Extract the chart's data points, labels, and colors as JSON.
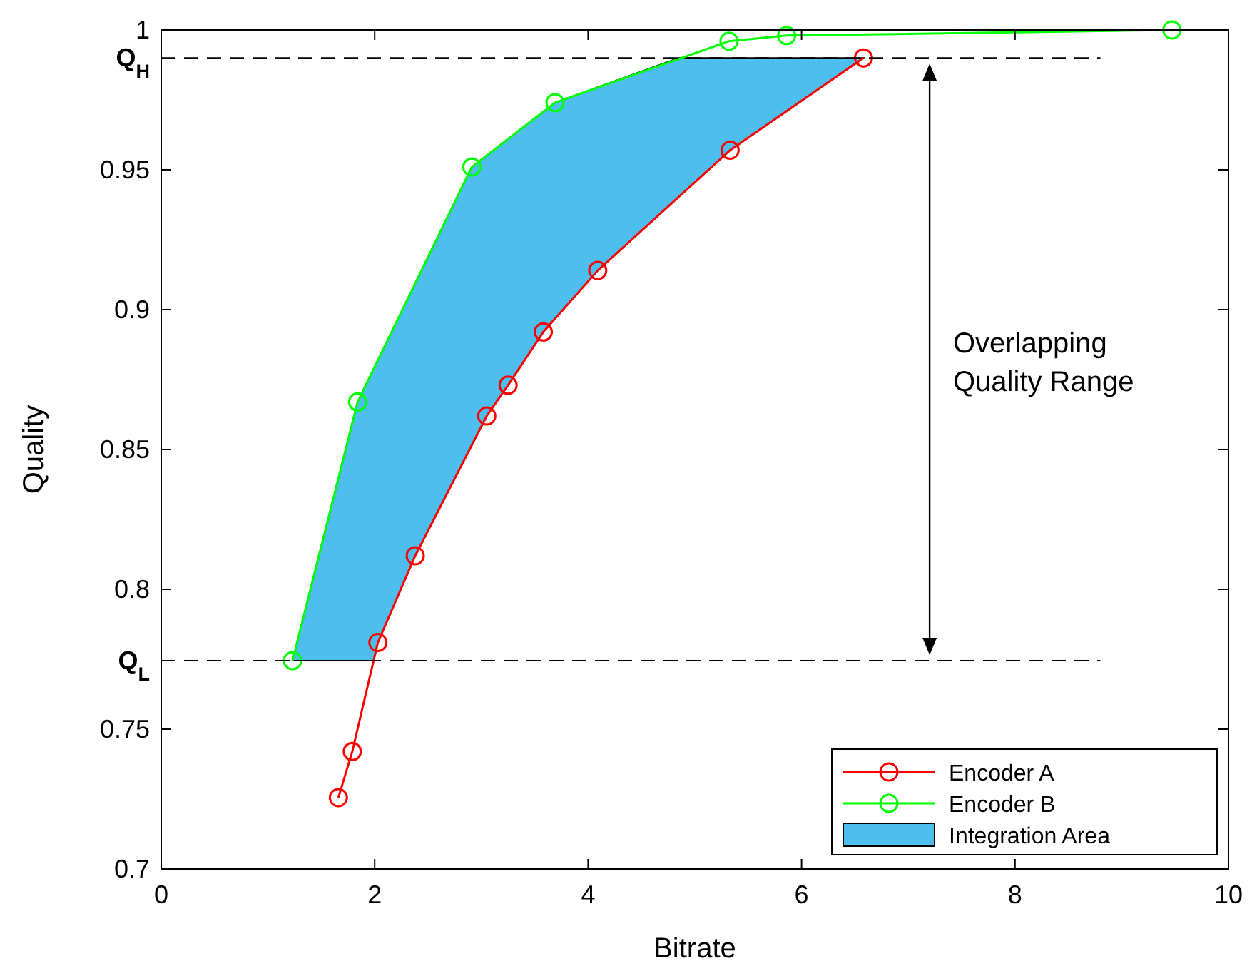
{
  "chart_data": {
    "type": "line",
    "xlabel": "Bitrate",
    "ylabel": "Quality",
    "xlim": [
      0,
      10
    ],
    "ylim": [
      0.7,
      1
    ],
    "xticks": [
      0,
      2,
      4,
      6,
      8,
      10
    ],
    "yticks": [
      0.7,
      0.75,
      0.8,
      0.85,
      0.9,
      0.95,
      1
    ],
    "grid": false,
    "legend": "bottom right",
    "line_style": "solid",
    "series": [
      {
        "name": "Encoder A",
        "marker": "circle",
        "color": "#ff0000",
        "x": [
          1.66,
          1.79,
          2.03,
          2.38,
          3.05,
          3.25,
          3.58,
          4.09,
          5.33,
          6.58
        ],
        "values": [
          0.7255,
          0.742,
          0.781,
          0.812,
          0.862,
          0.873,
          0.892,
          0.914,
          0.957,
          0.99
        ]
      },
      {
        "name": "Encoder B",
        "marker": "circle",
        "color": "#00ff00",
        "x": [
          1.23,
          1.84,
          2.91,
          3.69,
          5.32,
          5.86,
          9.47
        ],
        "values": [
          0.7745,
          0.867,
          0.951,
          0.974,
          0.996,
          0.998,
          1
        ]
      },
      {
        "name": "Integration Area",
        "type": "area",
        "color": "#4dbeee",
        "x": [
          1.23,
          1.84,
          2.91,
          3.69,
          4.85,
          6.58,
          5.33,
          4.09,
          3.58,
          3.25,
          3.05,
          2.38,
          2.03,
          1.99
        ],
        "values": [
          0.7745,
          0.867,
          0.951,
          0.974,
          0.99,
          0.99,
          0.957,
          0.914,
          0.892,
          0.873,
          0.862,
          0.812,
          0.781,
          0.7745
        ]
      }
    ],
    "ref_lines": [
      {
        "axis": "y",
        "value": 0.99,
        "label": "Q$_{H}$",
        "line_style": "dashed",
        "color": "#000000"
      },
      {
        "axis": "y",
        "value": 0.7745,
        "label": "Q$_{L}$",
        "line_style": "dashed",
        "color": "#000000"
      }
    ],
    "annotations": [
      "Overlapping Quality Range"
    ]
  }
}
